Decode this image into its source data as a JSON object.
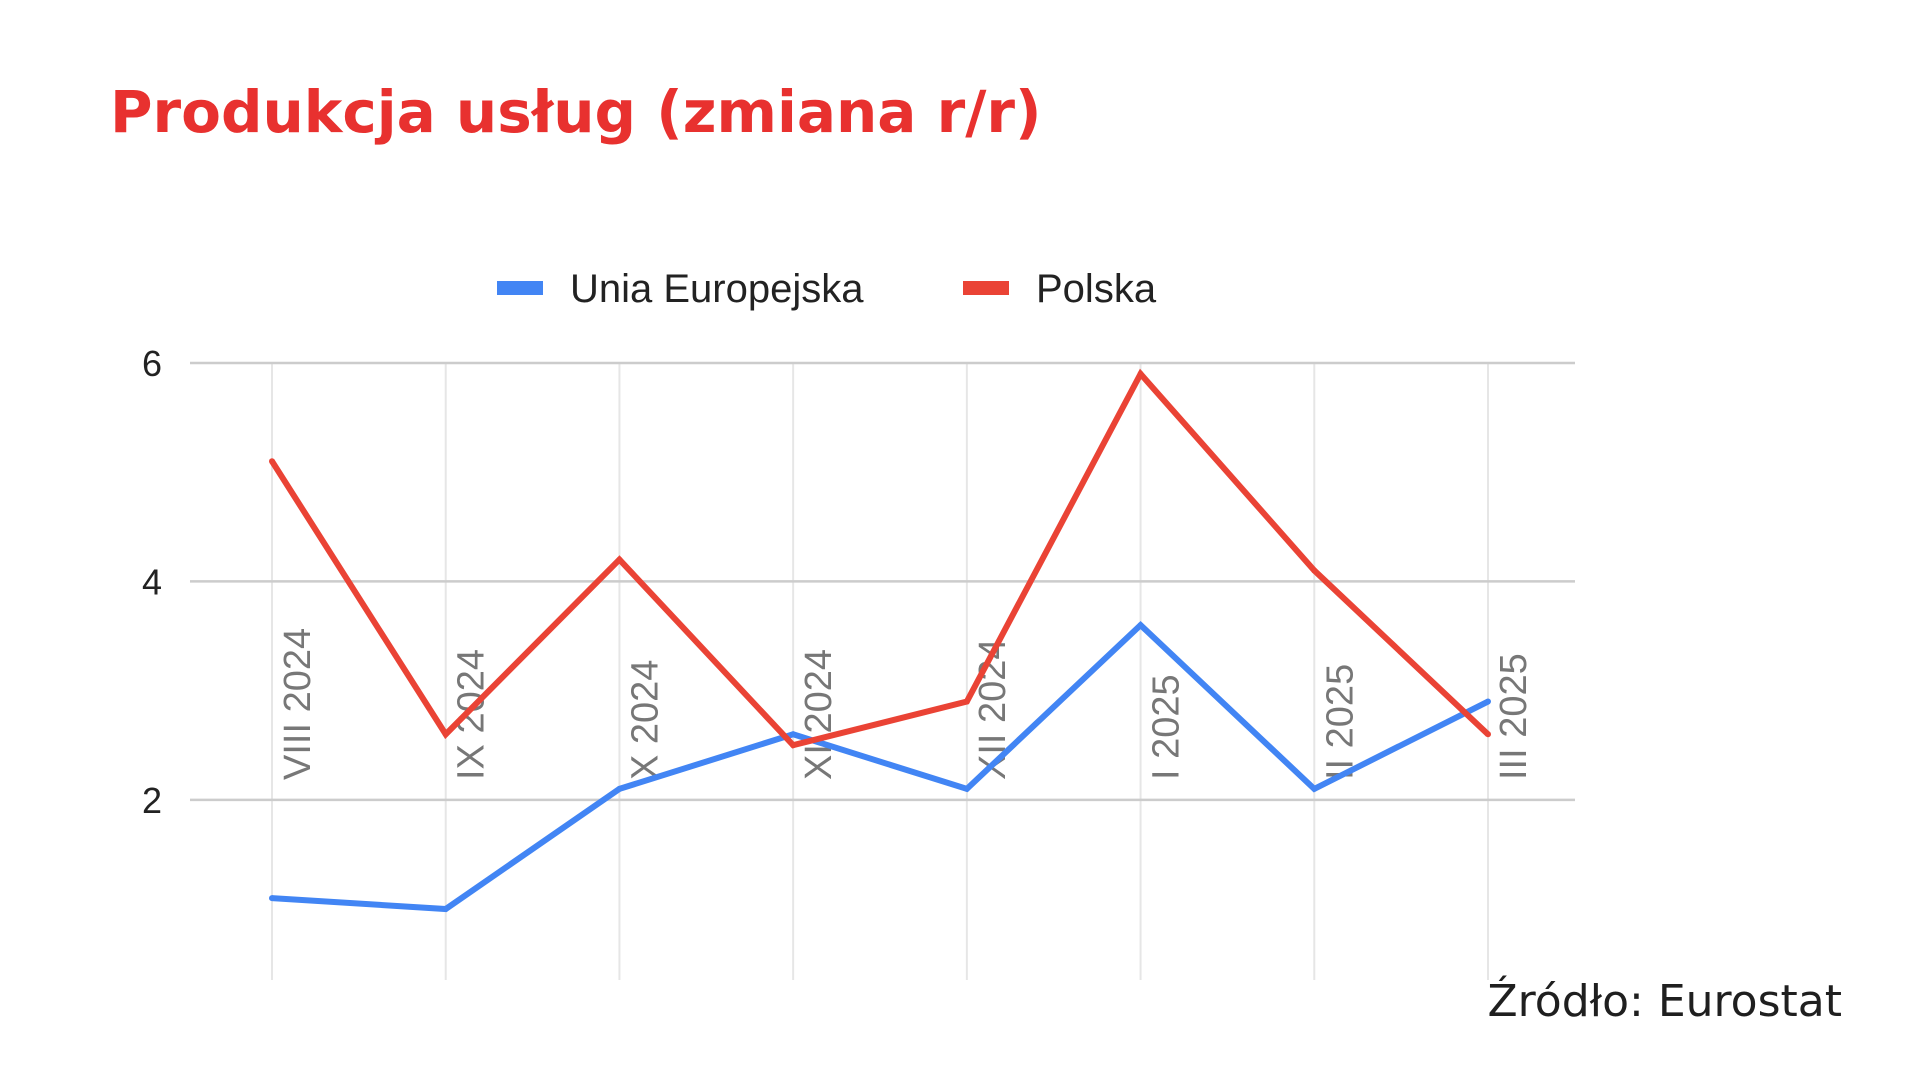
{
  "header": {
    "title": "Produkcja usług (zmiana r/r)"
  },
  "footer": {
    "source": "Źródło: Eurostat"
  },
  "chart_data": {
    "type": "line",
    "categories": [
      "VIII 2024",
      "IX 2024",
      "X 2024",
      "XI 2024",
      "XII 2024",
      "I 2025",
      "II 2025",
      "III 2025"
    ],
    "series": [
      {
        "name": "Unia Europejska",
        "color": "#4285f4",
        "values": [
          1.1,
          1.0,
          2.1,
          2.6,
          2.1,
          3.6,
          2.1,
          2.9
        ]
      },
      {
        "name": "Polska",
        "color": "#ea4335",
        "values": [
          5.1,
          2.6,
          4.2,
          2.5,
          2.9,
          5.9,
          4.1,
          2.6
        ]
      }
    ],
    "y_ticks": [
      "2",
      "4",
      "6"
    ],
    "ylim": [
      0.35,
      6.0
    ],
    "grid": true,
    "legend_position": "top"
  }
}
